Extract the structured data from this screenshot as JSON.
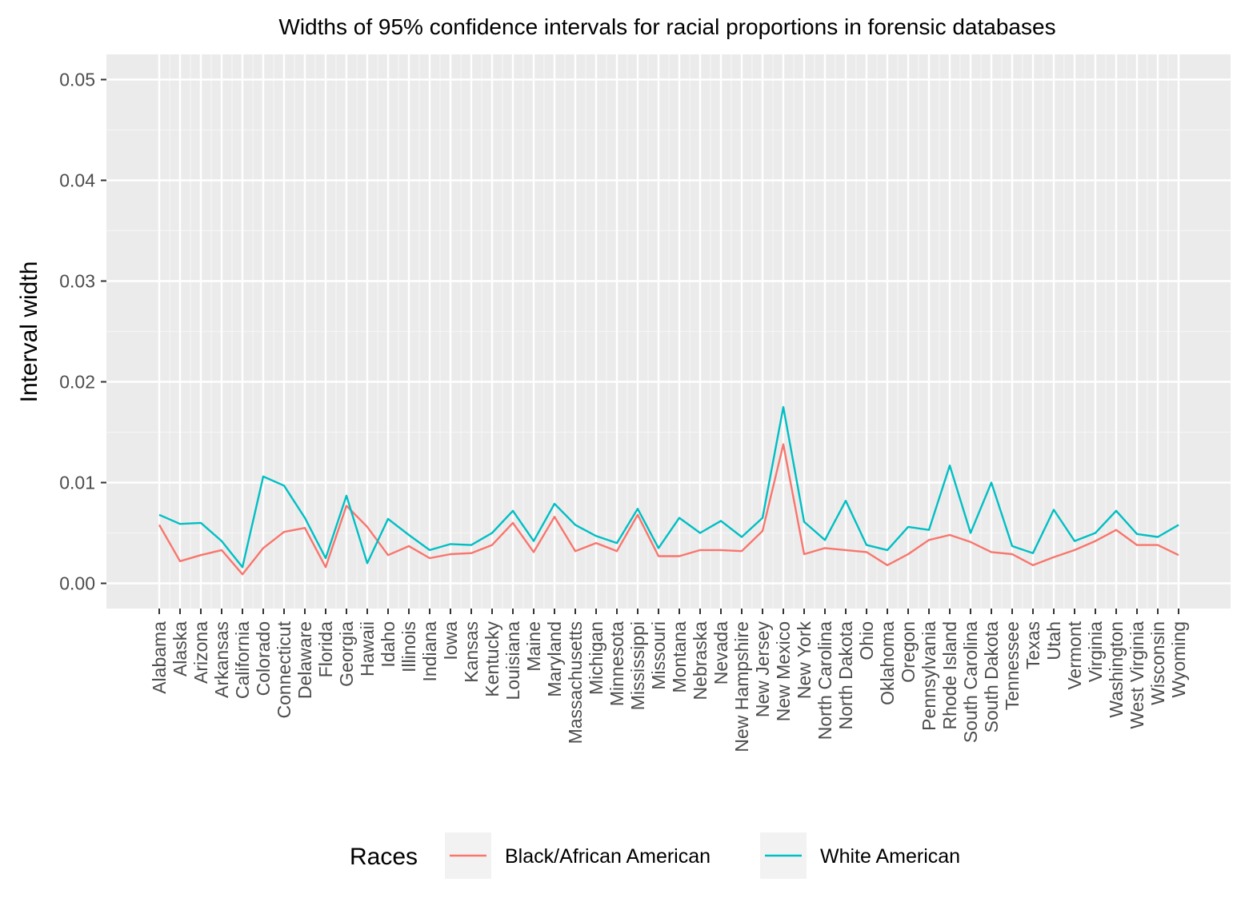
{
  "chart_data": {
    "type": "line",
    "title": "Widths of 95% confidence intervals for racial proportions in forensic databases",
    "xlabel": "",
    "ylabel": "Interval width",
    "ylim": [
      -0.0025,
      0.0525
    ],
    "yticks": [
      0.0,
      0.01,
      0.02,
      0.03,
      0.04,
      0.05
    ],
    "ytick_labels": [
      "0.00",
      "0.01",
      "0.02",
      "0.03",
      "0.04",
      "0.05"
    ],
    "grid": true,
    "legend": {
      "title": "Races",
      "position": "bottom"
    },
    "categories": [
      "Alabama",
      "Alaska",
      "Arizona",
      "Arkansas",
      "California",
      "Colorado",
      "Connecticut",
      "Delaware",
      "Florida",
      "Georgia",
      "Hawaii",
      "Idaho",
      "Illinois",
      "Indiana",
      "Iowa",
      "Kansas",
      "Kentucky",
      "Louisiana",
      "Maine",
      "Maryland",
      "Massachusetts",
      "Michigan",
      "Minnesota",
      "Mississippi",
      "Missouri",
      "Montana",
      "Nebraska",
      "Nevada",
      "New Hampshire",
      "New Jersey",
      "New Mexico",
      "New York",
      "North Carolina",
      "North Dakota",
      "Ohio",
      "Oklahoma",
      "Oregon",
      "Pennsylvania",
      "Rhode Island",
      "South Carolina",
      "South Dakota",
      "Tennessee",
      "Texas",
      "Utah",
      "Vermont",
      "Virginia",
      "Washington",
      "West Virginia",
      "Wisconsin",
      "Wyoming"
    ],
    "series": [
      {
        "name": "Black/African American",
        "color": "#F8766D",
        "values": [
          0.0058,
          0.0022,
          0.0028,
          0.0033,
          0.0009,
          0.0035,
          0.0051,
          0.0055,
          0.0016,
          0.0077,
          0.0056,
          0.0028,
          0.0037,
          0.0025,
          0.0029,
          0.003,
          0.0038,
          0.006,
          0.0031,
          0.0066,
          0.0032,
          0.004,
          0.0032,
          0.0068,
          0.0027,
          0.0027,
          0.0033,
          0.0033,
          0.0032,
          0.0052,
          0.0138,
          0.0029,
          0.0035,
          0.0033,
          0.0031,
          0.0018,
          0.0029,
          0.0043,
          0.0048,
          0.0041,
          0.0031,
          0.0029,
          0.0018,
          0.0026,
          0.0033,
          0.0042,
          0.0053,
          0.0038,
          0.0038,
          0.0028
        ]
      },
      {
        "name": "White American",
        "color": "#00BFC4",
        "values": [
          0.0068,
          0.0059,
          0.006,
          0.0042,
          0.0016,
          0.0106,
          0.0097,
          0.0065,
          0.0025,
          0.0087,
          0.002,
          0.0064,
          0.0048,
          0.0033,
          0.0039,
          0.0038,
          0.005,
          0.0072,
          0.0042,
          0.0079,
          0.0058,
          0.0047,
          0.004,
          0.0074,
          0.0035,
          0.0065,
          0.005,
          0.0062,
          0.0046,
          0.0065,
          0.0175,
          0.0061,
          0.0043,
          0.0082,
          0.0038,
          0.0033,
          0.0056,
          0.0053,
          0.0117,
          0.005,
          0.01,
          0.0037,
          0.003,
          0.0073,
          0.0042,
          0.005,
          0.0072,
          0.0049,
          0.0046,
          0.0058
        ]
      }
    ]
  }
}
